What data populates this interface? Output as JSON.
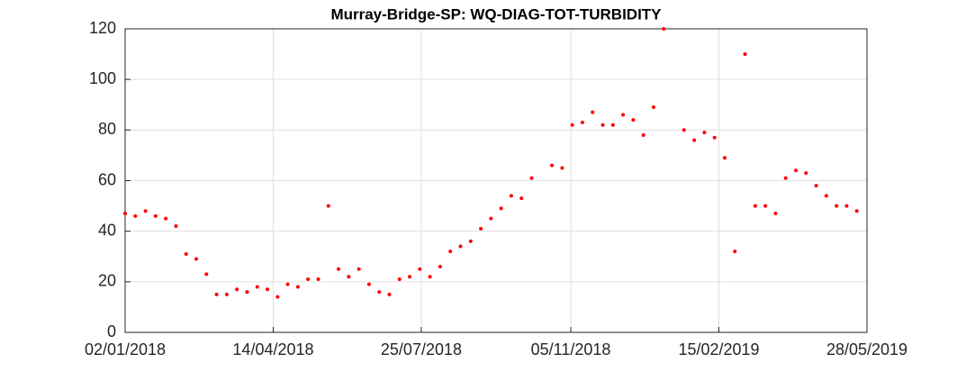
{
  "chart_data": {
    "type": "scatter",
    "title": "Murray-Bridge-SP: WQ-DIAG-TOT-TURBIDITY",
    "color": "#ff0000",
    "grid": true,
    "xlim": [
      "02/01/2018",
      "28/05/2019"
    ],
    "xticks": [
      "02/01/2018",
      "14/04/2018",
      "25/07/2018",
      "05/11/2018",
      "15/02/2019",
      "28/05/2019"
    ],
    "ylim": [
      0,
      120
    ],
    "yticks": [
      0,
      20,
      40,
      60,
      80,
      100,
      120
    ],
    "x": [
      "02/01/2018",
      "09/01/2018",
      "16/01/2018",
      "23/01/2018",
      "30/01/2018",
      "06/02/2018",
      "13/02/2018",
      "20/02/2018",
      "27/02/2018",
      "06/03/2018",
      "13/03/2018",
      "20/03/2018",
      "27/03/2018",
      "03/04/2018",
      "10/04/2018",
      "17/04/2018",
      "24/04/2018",
      "01/05/2018",
      "08/05/2018",
      "15/05/2018",
      "22/05/2018",
      "29/05/2018",
      "05/06/2018",
      "12/06/2018",
      "19/06/2018",
      "26/06/2018",
      "03/07/2018",
      "10/07/2018",
      "17/07/2018",
      "24/07/2018",
      "31/07/2018",
      "07/08/2018",
      "14/08/2018",
      "21/08/2018",
      "28/08/2018",
      "04/09/2018",
      "11/09/2018",
      "18/09/2018",
      "25/09/2018",
      "02/10/2018",
      "09/10/2018",
      "23/10/2018",
      "30/10/2018",
      "06/11/2018",
      "13/11/2018",
      "20/11/2018",
      "27/11/2018",
      "04/12/2018",
      "11/12/2018",
      "18/12/2018",
      "25/12/2018",
      "01/01/2019",
      "08/01/2019",
      "22/01/2019",
      "29/01/2019",
      "05/02/2019",
      "12/02/2019",
      "19/02/2019",
      "26/02/2019",
      "05/03/2019",
      "12/03/2019",
      "19/03/2019",
      "26/03/2019",
      "02/04/2019",
      "09/04/2019",
      "16/04/2019",
      "23/04/2019",
      "30/04/2019",
      "07/05/2019",
      "14/05/2019",
      "21/05/2019"
    ],
    "values": [
      47,
      46,
      48,
      46,
      45,
      42,
      31,
      29,
      23,
      15,
      15,
      17,
      16,
      18,
      17,
      14,
      19,
      18,
      21,
      21,
      50,
      25,
      22,
      25,
      19,
      16,
      15,
      21,
      22,
      25,
      22,
      26,
      32,
      34,
      36,
      41,
      45,
      49,
      54,
      53,
      61,
      66,
      65,
      82,
      83,
      87,
      82,
      82,
      86,
      84,
      78,
      89,
      120,
      80,
      76,
      79,
      77,
      69,
      32,
      110,
      50,
      50,
      47,
      61,
      64,
      63,
      58,
      54,
      50,
      50,
      48
    ]
  }
}
